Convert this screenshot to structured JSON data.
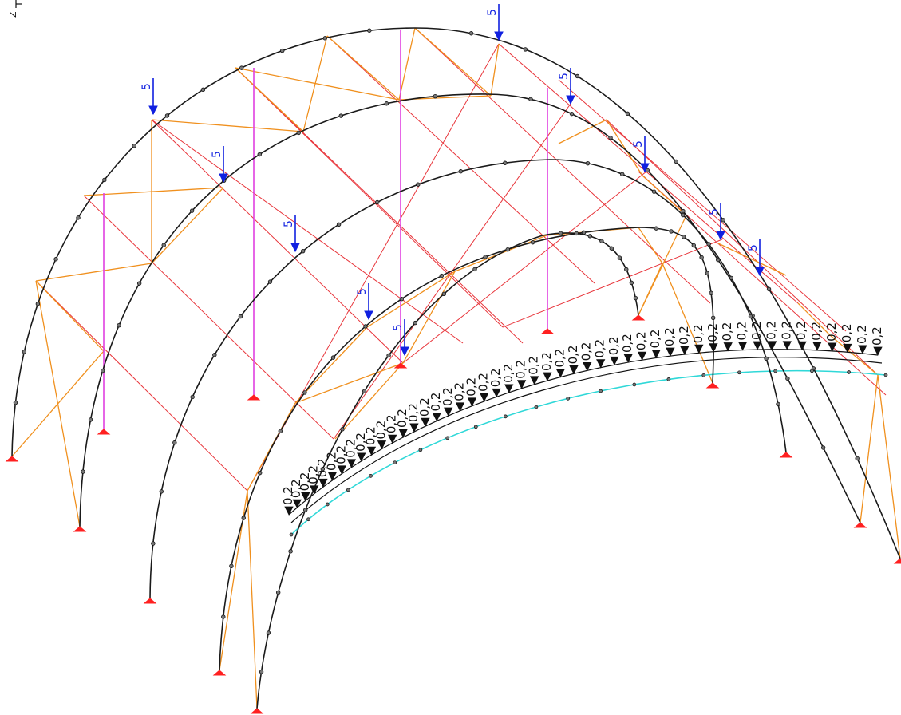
{
  "axis_indicator": {
    "label": "Z"
  },
  "colors": {
    "arch": "#1a1a1a",
    "brace": "#f0901e",
    "diagonal": "#e8343a",
    "hanger": "#e040e0",
    "edge_curve": "#30d8d8",
    "point_load": "#1020e0",
    "support": "#ff2020",
    "line_load": "#111111",
    "node_fill": "#777777"
  },
  "point_loads": {
    "value": "5",
    "count": 12
  },
  "line_loads": {
    "value": "0,2",
    "count": 48
  }
}
